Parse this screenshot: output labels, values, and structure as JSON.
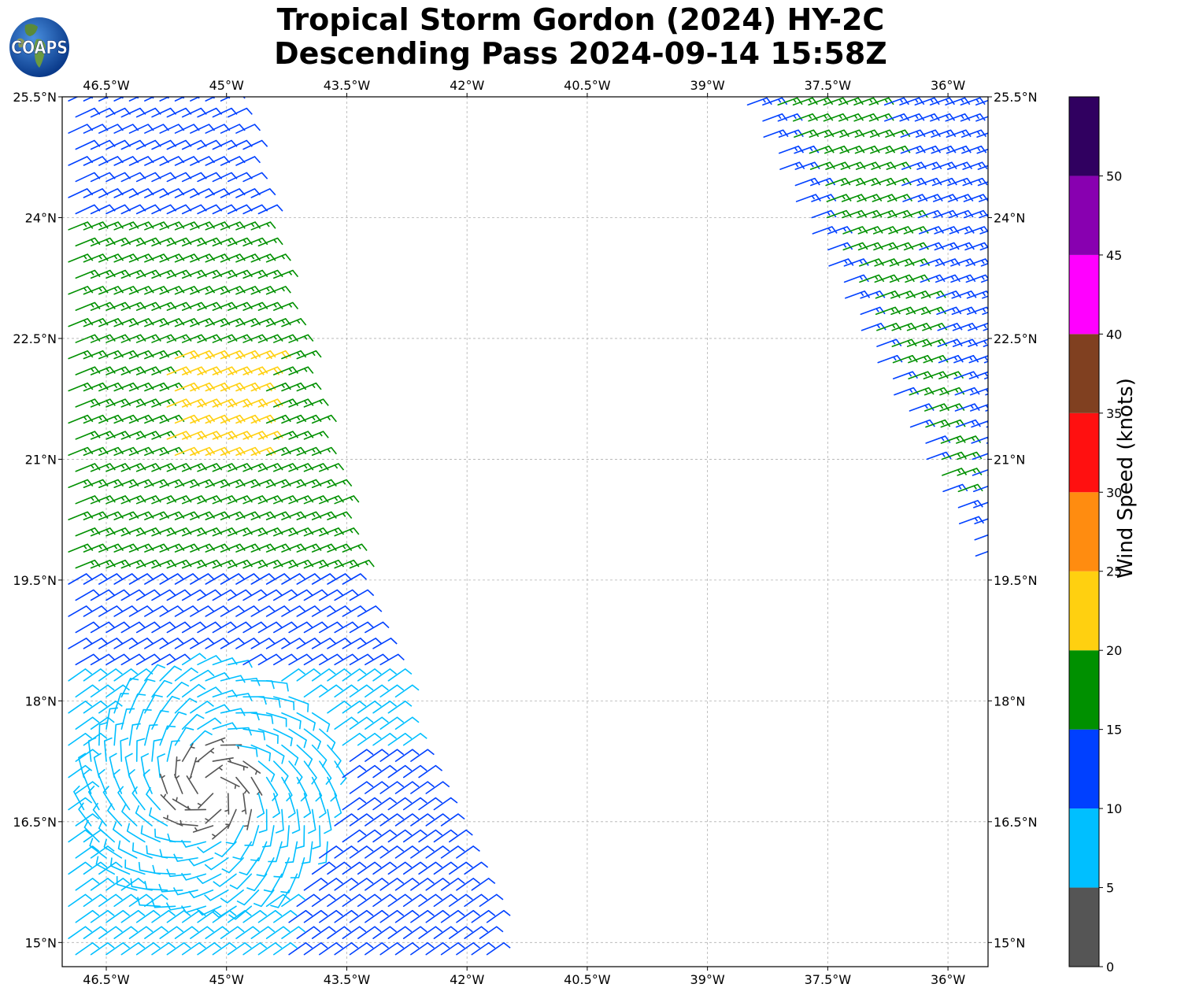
{
  "title": {
    "line1": "Tropical Storm Gordon (2024) HY-2C",
    "line2": "Descending Pass 2024-09-14 15:58Z"
  },
  "logo": {
    "text": "COAPS",
    "icon": "globe-icon"
  },
  "chart_data": {
    "type": "wind-barb-map",
    "projection": "PlateCarree",
    "xlim_lon": [
      -47.05,
      -35.5
    ],
    "ylim_lat": [
      14.7,
      25.5
    ],
    "grid": true,
    "x_ticks": [
      {
        "value": -46.5,
        "label": "46.5°W"
      },
      {
        "value": -45,
        "label": "45°W"
      },
      {
        "value": -43.5,
        "label": "43.5°W"
      },
      {
        "value": -42,
        "label": "42°W"
      },
      {
        "value": -40.5,
        "label": "40.5°W"
      },
      {
        "value": -39,
        "label": "39°W"
      },
      {
        "value": -37.5,
        "label": "37.5°W"
      },
      {
        "value": -36,
        "label": "36°W"
      }
    ],
    "y_ticks": [
      {
        "value": 25.5,
        "label": "25.5°N"
      },
      {
        "value": 24,
        "label": "24°N"
      },
      {
        "value": 22.5,
        "label": "22.5°N"
      },
      {
        "value": 21,
        "label": "21°N"
      },
      {
        "value": 19.5,
        "label": "19.5°N"
      },
      {
        "value": 18,
        "label": "18°N"
      },
      {
        "value": 16.5,
        "label": "16.5°N"
      },
      {
        "value": 15,
        "label": "15°N"
      }
    ],
    "colorbar": {
      "label": "Wind Speed (knots)",
      "bounds": [
        0,
        5,
        10,
        15,
        20,
        25,
        30,
        35,
        40,
        45,
        50,
        55
      ],
      "tick_labels": [
        "0",
        "5",
        "10",
        "15",
        "20",
        "25",
        "30",
        "35",
        "40",
        "45",
        "50"
      ],
      "colors": [
        "#555555",
        "#00bfff",
        "#0040ff",
        "#009000",
        "#ffd010",
        "#ff8c10",
        "#ff1010",
        "#804020",
        "#ff00ff",
        "#8800b0",
        "#300060"
      ]
    },
    "swaths": [
      {
        "name": "west-swath",
        "east_edge": [
          [
            -44.95,
            25.5
          ],
          [
            -43.4,
            19.5
          ],
          [
            -42.3,
            16.5
          ],
          [
            -41.5,
            14.7
          ]
        ],
        "west_edge_lon": -47.05,
        "lat_range": [
          14.7,
          25.5
        ],
        "spacing_deg": 0.125
      },
      {
        "name": "east-swath",
        "west_edge": [
          [
            -38.5,
            25.4
          ],
          [
            -35.5,
            19.5
          ]
        ],
        "east_edge_lon": -35.5,
        "lat_range": [
          19.5,
          25.4
        ],
        "spacing_deg": 0.125
      }
    ],
    "storm_center": {
      "lon": -45.2,
      "lat": 16.9
    },
    "speed_regions": [
      {
        "desc": "west swath north",
        "lat_range": [
          24.0,
          25.5
        ],
        "speed_kt": 12,
        "dir_to_deg": 245
      },
      {
        "desc": "west swath mid",
        "lat_range": [
          19.5,
          24.0
        ],
        "speed_kt": 17,
        "dir_to_deg": 248
      },
      {
        "desc": "yellow patch",
        "lon_range": [
          -45.8,
          -44.6
        ],
        "lat_range": [
          21.0,
          22.3
        ],
        "speed_kt": 22,
        "dir_to_deg": 248
      },
      {
        "desc": "west swath lower",
        "lat_range": [
          18.3,
          19.5
        ],
        "speed_kt": 12,
        "dir_to_deg": 240
      },
      {
        "desc": "near-storm ring",
        "radius_deg": [
          0.6,
          1.6
        ],
        "speed_kt": 8
      },
      {
        "desc": "storm core",
        "radius_deg": [
          0.0,
          0.6
        ],
        "speed_kt": 3
      },
      {
        "desc": "southeast of storm",
        "lat_range": [
          14.7,
          17.3
        ],
        "lon_min": -44.3,
        "speed_kt": 12,
        "dir_to_deg": 235
      },
      {
        "desc": "east swath",
        "lat_range": [
          19.5,
          25.4
        ],
        "speed_kt": 13,
        "dir_to_deg": 250
      },
      {
        "desc": "east swath green band",
        "band": "central",
        "speed_kt": 17,
        "dir_to_deg": 250
      }
    ]
  }
}
